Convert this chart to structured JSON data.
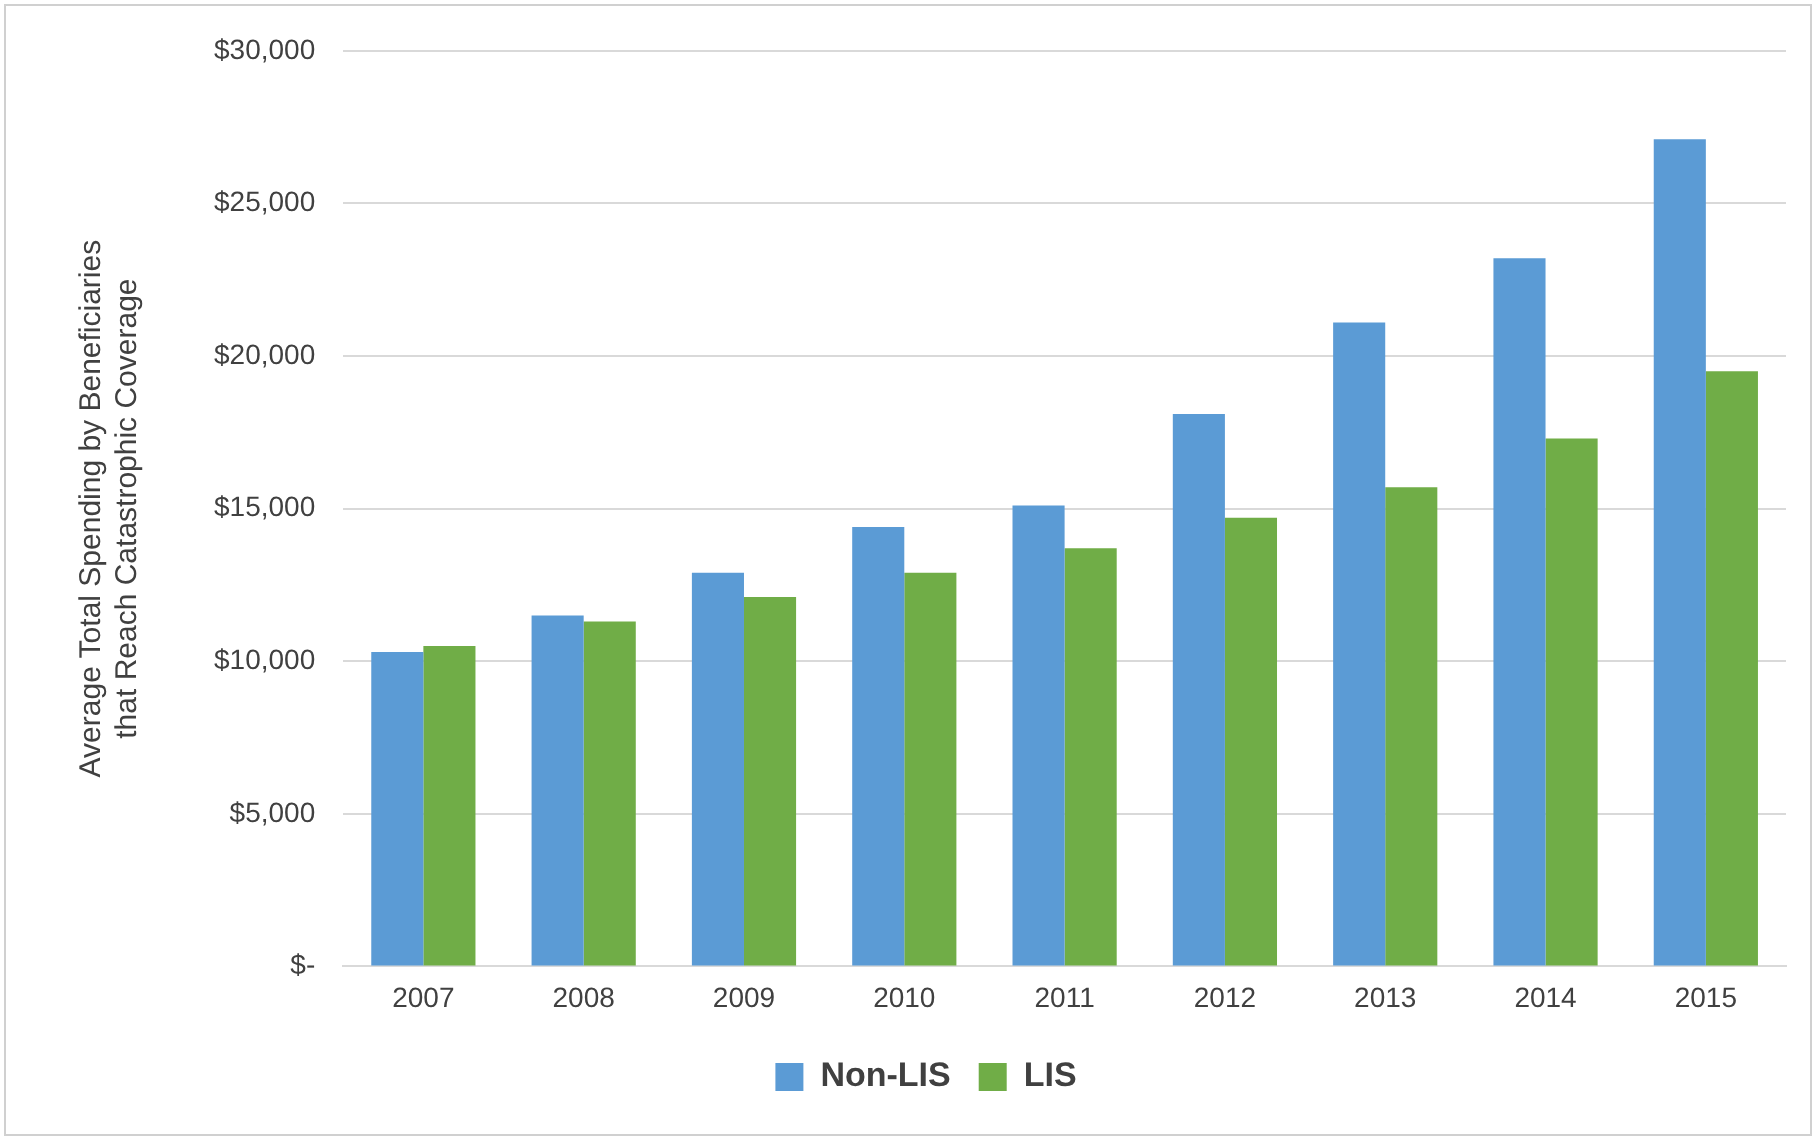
{
  "chart_data": {
    "type": "bar",
    "ylabel": "Average Total Spending by Beneficiaries that Reach Catastrophic Coverage",
    "categories": [
      "2007",
      "2008",
      "2009",
      "2010",
      "2011",
      "2012",
      "2013",
      "2014",
      "2015"
    ],
    "series": [
      {
        "name": "Non-LIS",
        "color": "#5b9bd5",
        "values": [
          10300,
          11500,
          12900,
          14400,
          15100,
          18100,
          21100,
          23200,
          27100
        ]
      },
      {
        "name": "LIS",
        "color": "#70ad47",
        "values": [
          10500,
          11300,
          12100,
          12900,
          13700,
          14700,
          15700,
          17300,
          19500
        ]
      }
    ],
    "ylim": [
      0,
      30000
    ],
    "yticks": [
      {
        "value": 0,
        "label": "$-"
      },
      {
        "value": 5000,
        "label": "$5,000"
      },
      {
        "value": 10000,
        "label": "$10,000"
      },
      {
        "value": 15000,
        "label": "$15,000"
      },
      {
        "value": 20000,
        "label": "$20,000"
      },
      {
        "value": 25000,
        "label": "$25,000"
      },
      {
        "value": 30000,
        "label": "$30,000"
      }
    ],
    "grid": "y",
    "legend": "bottom"
  }
}
